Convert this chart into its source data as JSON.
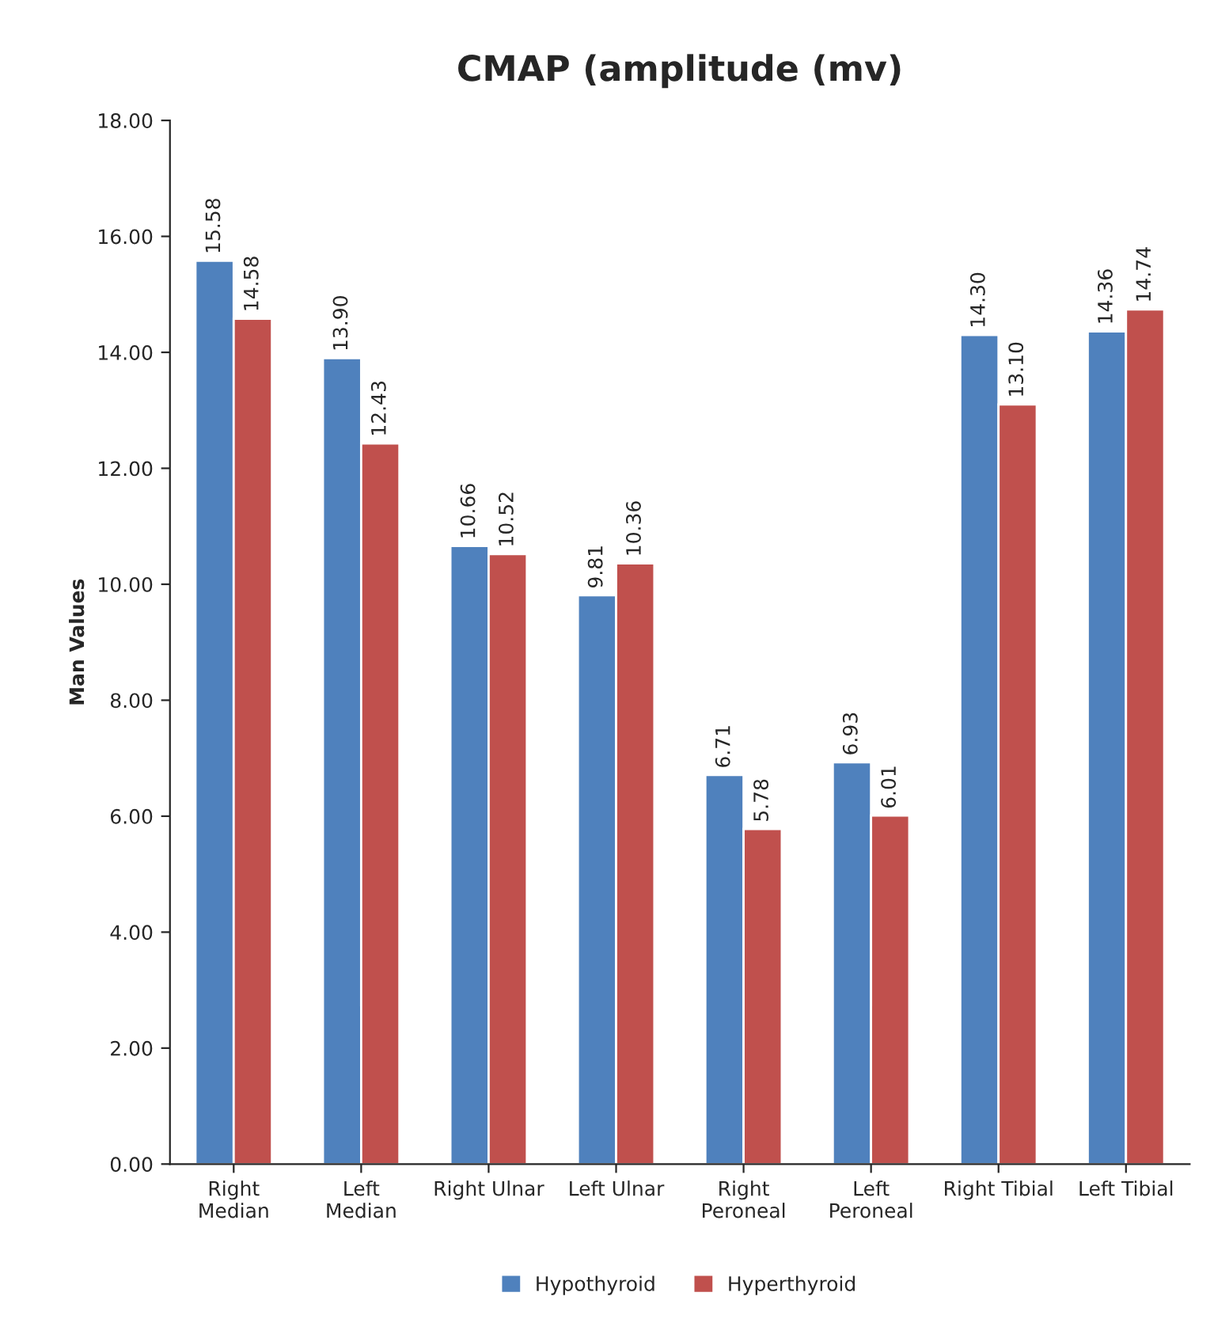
{
  "chart_data": {
    "type": "bar",
    "title": "CMAP (amplitude (mv)",
    "ylabel": "Man Values",
    "categories": [
      "Right\nMedian",
      "Left\nMedian",
      "Right Ulnar",
      "Left Ulnar",
      "Right\nPeroneal",
      "Left\nPeroneal",
      "Right Tibial",
      "Left Tibial"
    ],
    "series": [
      {
        "name": "Hypothyroid",
        "color": "#4f81bd",
        "values": [
          15.58,
          13.9,
          10.66,
          9.81,
          6.71,
          6.93,
          14.3,
          14.36
        ],
        "value_labels": [
          "15.58",
          "13.90",
          "10.66",
          "9.81",
          "6.71",
          "6.93",
          "14.30",
          "14.36"
        ]
      },
      {
        "name": "Hyperthyroid",
        "color": "#c0504d",
        "values": [
          14.58,
          12.43,
          10.52,
          10.36,
          5.78,
          6.01,
          13.1,
          14.74
        ],
        "value_labels": [
          "14.58",
          "12.43",
          "10.52",
          "10.36",
          "5.78",
          "6.01",
          "13.10",
          "14.74"
        ]
      }
    ],
    "ylim": [
      0,
      18
    ],
    "yticks": [
      {
        "value": 0,
        "label": "0.00"
      },
      {
        "value": 2,
        "label": "2.00"
      },
      {
        "value": 4,
        "label": "4.00"
      },
      {
        "value": 6,
        "label": "6.00"
      },
      {
        "value": 8,
        "label": "8.00"
      },
      {
        "value": 10,
        "label": "10.00"
      },
      {
        "value": 12,
        "label": "12.00"
      },
      {
        "value": 14,
        "label": "14.00"
      },
      {
        "value": 16,
        "label": "16.00"
      },
      {
        "value": 18,
        "label": "18.00"
      }
    ],
    "grid": false,
    "legend": "bottom"
  }
}
